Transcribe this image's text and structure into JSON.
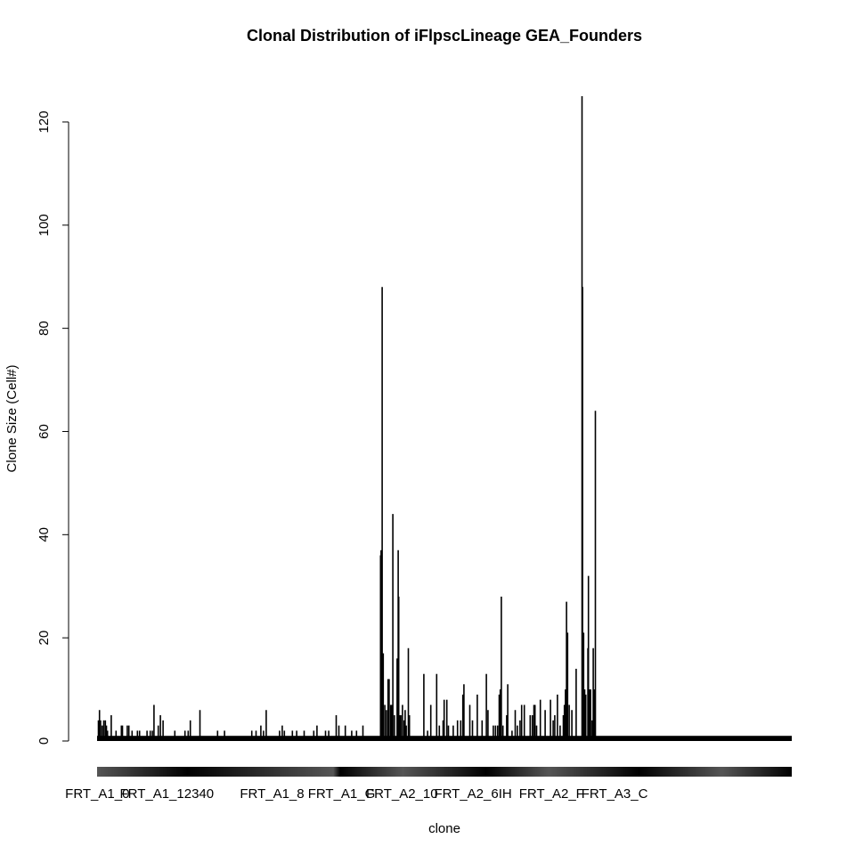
{
  "chart_data": {
    "type": "bar",
    "title": "Clonal Distribution of iFlpscLineage GEA_Founders",
    "xlabel": "clone",
    "ylabel": "Clone Size (Cell#)",
    "ylim": [
      0,
      125
    ],
    "yticks": [
      0,
      20,
      40,
      60,
      80,
      100,
      120
    ],
    "grid": false,
    "legend": "none",
    "bar_color": "#000000",
    "clone_count": 1300,
    "category_tick_labels": [
      "FRT_A1_0",
      "FRT_A1_12340",
      "FRT_A1_8",
      "FRT_A1_G",
      "FRT_A2_10",
      "FRT_A2_6IH",
      "FRT_A2_F",
      "FRT_A3_C"
    ],
    "category_tick_label_positions": [
      0,
      130,
      327,
      457,
      570,
      703,
      850,
      968
    ],
    "series": [
      {
        "baseline_value": 1,
        "peaks": [
          [
            2,
            4
          ],
          [
            4,
            6
          ],
          [
            6,
            4
          ],
          [
            9,
            3
          ],
          [
            12,
            4
          ],
          [
            15,
            4
          ],
          [
            17,
            3
          ],
          [
            19,
            2
          ],
          [
            26,
            5
          ],
          [
            35,
            2
          ],
          [
            45,
            3
          ],
          [
            47,
            3
          ],
          [
            56,
            3
          ],
          [
            59,
            3
          ],
          [
            65,
            2
          ],
          [
            75,
            2
          ],
          [
            79,
            2
          ],
          [
            93,
            2
          ],
          [
            99,
            2
          ],
          [
            103,
            2
          ],
          [
            106,
            7
          ],
          [
            114,
            3
          ],
          [
            118,
            5
          ],
          [
            123,
            4
          ],
          [
            145,
            2
          ],
          [
            164,
            2
          ],
          [
            170,
            2
          ],
          [
            174,
            4
          ],
          [
            192,
            6
          ],
          [
            225,
            2
          ],
          [
            238,
            2
          ],
          [
            289,
            2
          ],
          [
            297,
            2
          ],
          [
            306,
            3
          ],
          [
            311,
            2
          ],
          [
            316,
            6
          ],
          [
            341,
            2
          ],
          [
            346,
            3
          ],
          [
            350,
            2
          ],
          [
            365,
            2
          ],
          [
            373,
            2
          ],
          [
            387,
            2
          ],
          [
            405,
            2
          ],
          [
            411,
            3
          ],
          [
            427,
            2
          ],
          [
            433,
            2
          ],
          [
            447,
            5
          ],
          [
            452,
            3
          ],
          [
            464,
            3
          ],
          [
            476,
            2
          ],
          [
            485,
            2
          ],
          [
            497,
            3
          ],
          [
            530,
            36
          ],
          [
            531,
            37
          ],
          [
            533,
            88
          ],
          [
            535,
            17
          ],
          [
            538,
            7
          ],
          [
            541,
            6
          ],
          [
            544,
            12
          ],
          [
            546,
            12
          ],
          [
            549,
            7
          ],
          [
            551,
            7
          ],
          [
            553,
            44
          ],
          [
            556,
            5
          ],
          [
            561,
            16
          ],
          [
            563,
            37
          ],
          [
            564,
            28
          ],
          [
            566,
            5
          ],
          [
            568,
            5
          ],
          [
            571,
            7
          ],
          [
            574,
            4
          ],
          [
            576,
            6
          ],
          [
            578,
            3
          ],
          [
            582,
            18
          ],
          [
            584,
            5
          ],
          [
            611,
            13
          ],
          [
            618,
            2
          ],
          [
            624,
            7
          ],
          [
            635,
            13
          ],
          [
            640,
            3
          ],
          [
            647,
            4
          ],
          [
            649,
            8
          ],
          [
            654,
            8
          ],
          [
            657,
            3
          ],
          [
            666,
            3
          ],
          [
            674,
            4
          ],
          [
            680,
            4
          ],
          [
            684,
            9
          ],
          [
            686,
            11
          ],
          [
            697,
            7
          ],
          [
            702,
            4
          ],
          [
            711,
            9
          ],
          [
            720,
            4
          ],
          [
            728,
            13
          ],
          [
            731,
            6
          ],
          [
            741,
            3
          ],
          [
            745,
            3
          ],
          [
            749,
            3
          ],
          [
            752,
            9
          ],
          [
            754,
            10
          ],
          [
            756,
            28
          ],
          [
            759,
            3
          ],
          [
            766,
            5
          ],
          [
            768,
            11
          ],
          [
            776,
            2
          ],
          [
            782,
            6
          ],
          [
            786,
            3
          ],
          [
            791,
            4
          ],
          [
            794,
            7
          ],
          [
            799,
            7
          ],
          [
            810,
            5
          ],
          [
            814,
            5
          ],
          [
            817,
            7
          ],
          [
            819,
            7
          ],
          [
            822,
            3
          ],
          [
            829,
            8
          ],
          [
            838,
            6
          ],
          [
            848,
            8
          ],
          [
            853,
            4
          ],
          [
            856,
            5
          ],
          [
            861,
            9
          ],
          [
            866,
            3
          ],
          [
            872,
            5
          ],
          [
            874,
            7
          ],
          [
            876,
            10
          ],
          [
            878,
            27
          ],
          [
            880,
            21
          ],
          [
            883,
            7
          ],
          [
            888,
            6
          ],
          [
            896,
            14
          ],
          [
            907,
            125
          ],
          [
            908,
            88
          ],
          [
            910,
            21
          ],
          [
            912,
            10
          ],
          [
            914,
            9
          ],
          [
            918,
            18
          ],
          [
            919,
            32
          ],
          [
            921,
            10
          ],
          [
            923,
            10
          ],
          [
            926,
            4
          ],
          [
            928,
            18
          ],
          [
            930,
            10
          ],
          [
            932,
            64
          ]
        ]
      }
    ]
  }
}
